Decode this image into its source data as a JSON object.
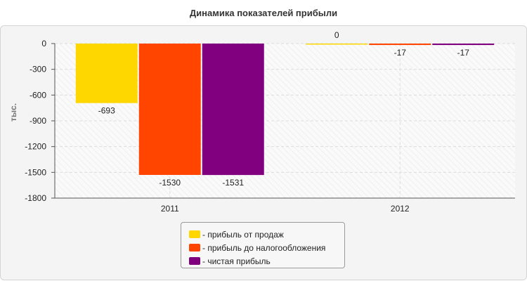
{
  "chart_data": {
    "type": "bar",
    "title": "Динамика показателей прибыли",
    "ylabel": "тыс.",
    "xlabel": "",
    "categories": [
      "2011",
      "2012"
    ],
    "ylim": [
      -1800,
      0
    ],
    "yticks": [
      0,
      -300,
      -600,
      -900,
      -1200,
      -1500,
      -1800
    ],
    "grid": true,
    "legend_position": "bottom",
    "series": [
      {
        "name": "прибыль от продаж",
        "values": [
          -693,
          0
        ],
        "color": "#ffd700",
        "data_labels": [
          "-693",
          "0"
        ]
      },
      {
        "name": "прибыль до налогообложения",
        "values": [
          -1530,
          -17
        ],
        "color": "#ff4500",
        "data_labels": [
          "-1530",
          "-17"
        ]
      },
      {
        "name": "чистая прибыль",
        "values": [
          -1531,
          -17
        ],
        "color": "#800080",
        "data_labels": [
          "-1531",
          "-17"
        ]
      }
    ]
  },
  "legend": {
    "prefix": "- ",
    "items": [
      {
        "label": "прибыль от продаж",
        "color": "#ffd700"
      },
      {
        "label": "прибыль до налогообложения",
        "color": "#ff4500"
      },
      {
        "label": "чистая прибыль",
        "color": "#800080"
      }
    ]
  }
}
